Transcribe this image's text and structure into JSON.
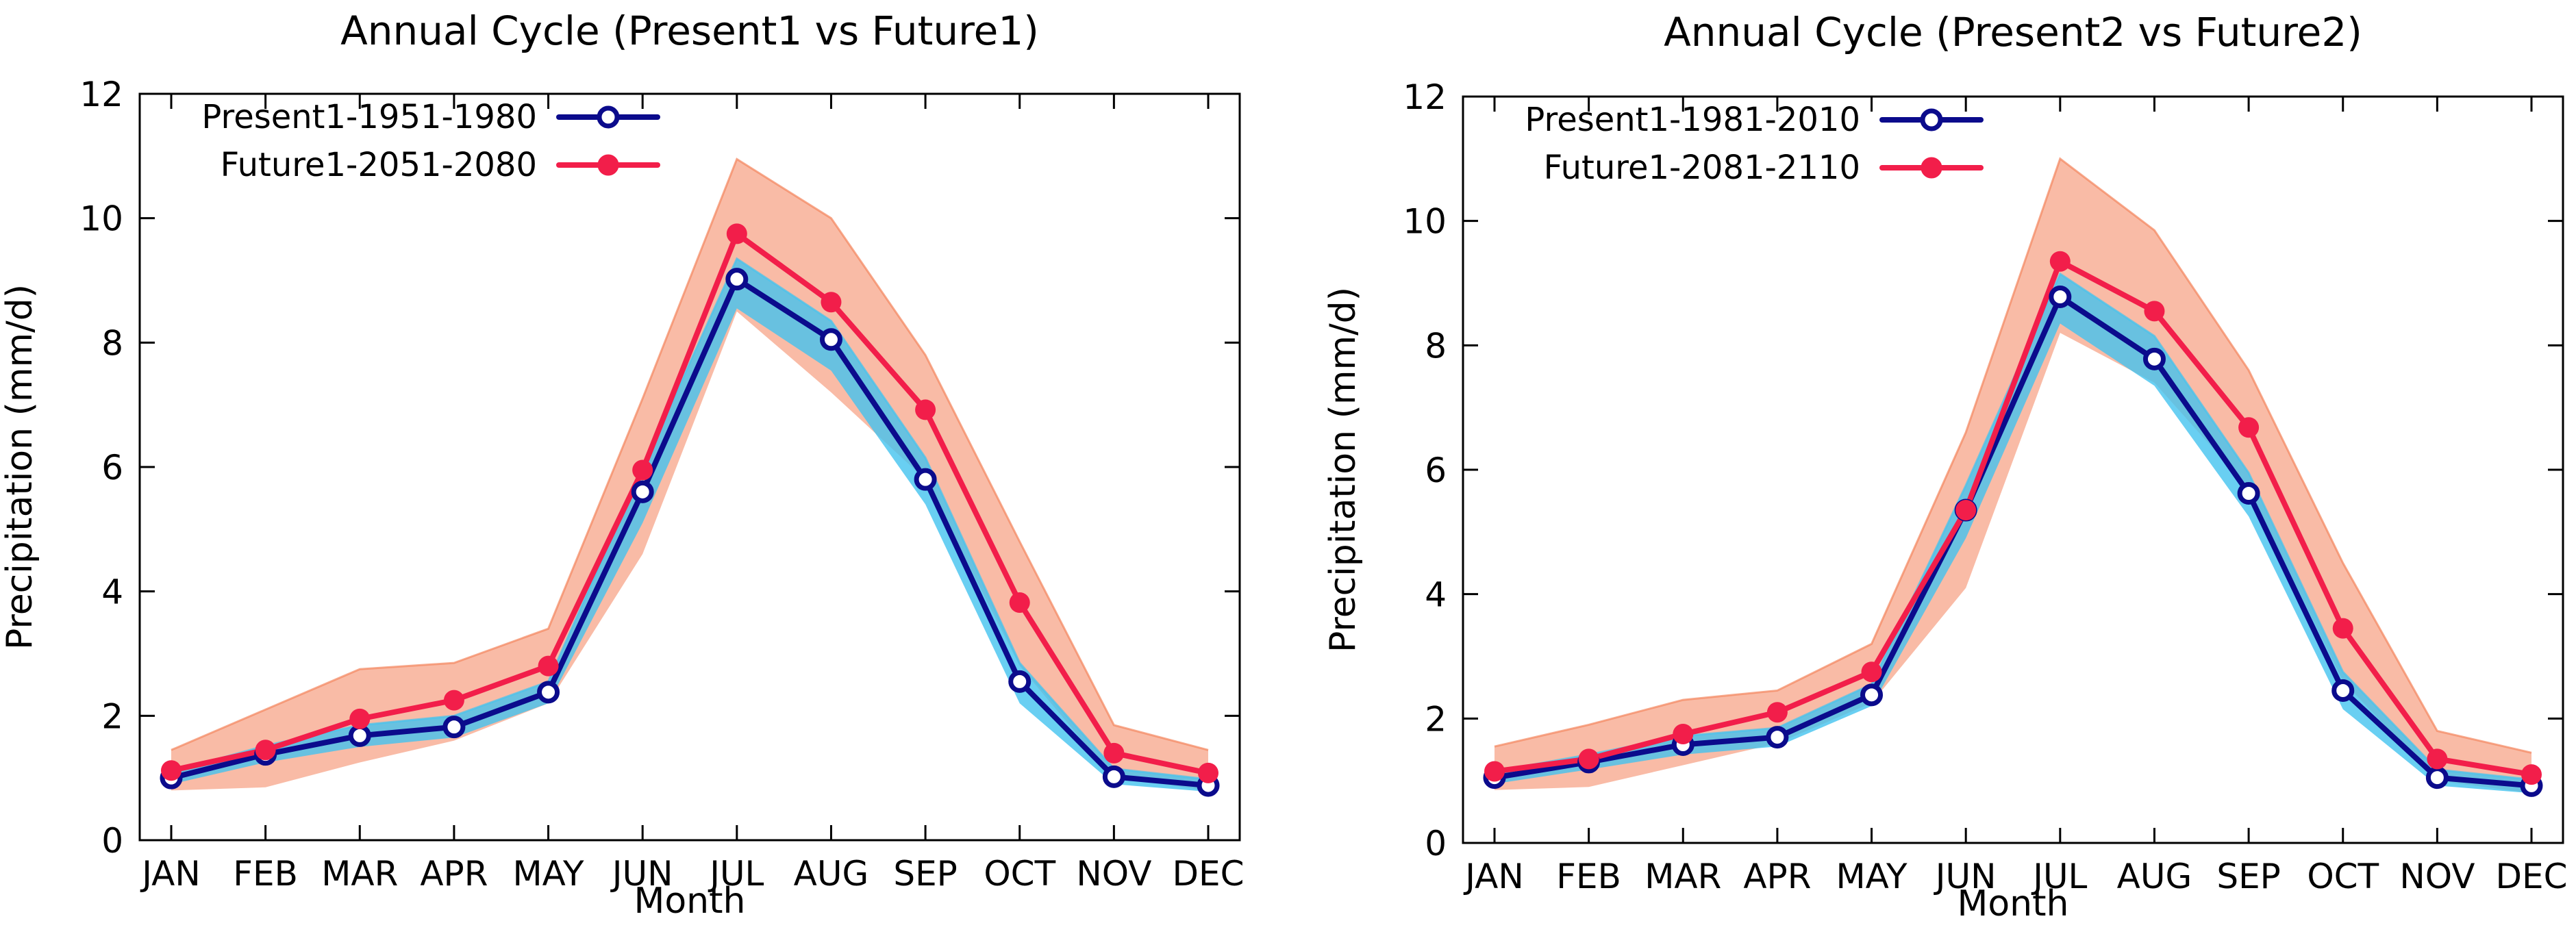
{
  "figure": {
    "colors": {
      "present_line": "#0b0b8c",
      "future_line": "#f21e4a",
      "present_band": "#43c3ef",
      "future_band": "#f4845c",
      "axes": "#000000"
    }
  },
  "chart_data": [
    {
      "type": "line",
      "title": "Annual Cycle (Present1 vs Future1)",
      "xlabel": "Month",
      "ylabel": "Precipitation (mm/d)",
      "categories": [
        "JAN",
        "FEB",
        "MAR",
        "APR",
        "MAY",
        "JUN",
        "JUL",
        "AUG",
        "SEP",
        "OCT",
        "NOV",
        "DEC"
      ],
      "ylim": [
        0,
        12
      ],
      "yticks": [
        "0",
        "2",
        "4",
        "6",
        "8",
        "10",
        "12"
      ],
      "grid": false,
      "legend_position": "top-left",
      "series": [
        {
          "name": "Present1-1951-1980",
          "marker": "open-circle",
          "values": [
            1.0,
            1.38,
            1.68,
            1.82,
            2.38,
            5.6,
            9.02,
            8.05,
            5.8,
            2.55,
            1.02,
            0.88
          ],
          "spread_low": [
            0.9,
            1.25,
            1.5,
            1.65,
            2.2,
            5.1,
            8.55,
            7.55,
            5.4,
            2.2,
            0.9,
            0.78
          ],
          "spread_high": [
            1.1,
            1.52,
            1.85,
            2.0,
            2.55,
            6.0,
            9.35,
            8.35,
            6.15,
            2.85,
            1.15,
            0.98
          ]
        },
        {
          "name": "Future1-2051-2080",
          "marker": "filled-circle",
          "values": [
            1.12,
            1.45,
            1.95,
            2.25,
            2.8,
            5.95,
            9.75,
            8.65,
            6.92,
            3.82,
            1.4,
            1.08
          ],
          "spread_low": [
            0.8,
            0.85,
            1.25,
            1.6,
            2.2,
            4.6,
            8.5,
            7.2,
            5.8,
            2.8,
            1.0,
            0.8
          ],
          "spread_high": [
            1.45,
            2.1,
            2.75,
            2.85,
            3.4,
            7.1,
            10.95,
            10.0,
            7.8,
            4.8,
            1.85,
            1.45
          ]
        }
      ]
    },
    {
      "type": "line",
      "title": "Annual Cycle (Present2 vs Future2)",
      "xlabel": "Month",
      "ylabel": "Precipitation (mm/d)",
      "categories": [
        "JAN",
        "FEB",
        "MAR",
        "APR",
        "MAY",
        "JUN",
        "JUL",
        "AUG",
        "SEP",
        "OCT",
        "NOV",
        "DEC"
      ],
      "ylim": [
        0,
        12
      ],
      "yticks": [
        "0",
        "2",
        "4",
        "6",
        "8",
        "10",
        "12"
      ],
      "grid": false,
      "legend_position": "top-left",
      "series": [
        {
          "name": "Present1-1981-2010",
          "marker": "open-circle",
          "values": [
            1.05,
            1.3,
            1.58,
            1.7,
            2.38,
            5.35,
            8.78,
            7.78,
            5.62,
            2.45,
            1.05,
            0.92
          ],
          "spread_low": [
            0.95,
            1.18,
            1.42,
            1.55,
            2.2,
            4.9,
            8.35,
            7.35,
            5.25,
            2.15,
            0.92,
            0.8
          ],
          "spread_high": [
            1.15,
            1.42,
            1.72,
            1.85,
            2.55,
            5.75,
            9.15,
            8.15,
            5.95,
            2.75,
            1.18,
            1.02
          ]
        },
        {
          "name": "Future1-2081-2110",
          "marker": "filled-circle",
          "values": [
            1.15,
            1.35,
            1.75,
            2.1,
            2.75,
            5.35,
            9.35,
            8.55,
            6.68,
            3.45,
            1.35,
            1.1
          ],
          "spread_low": [
            0.85,
            0.9,
            1.25,
            1.6,
            2.25,
            4.1,
            8.2,
            7.4,
            5.7,
            2.6,
            1.0,
            0.8
          ],
          "spread_high": [
            1.55,
            1.9,
            2.3,
            2.45,
            3.2,
            6.6,
            11.0,
            9.85,
            7.6,
            4.5,
            1.8,
            1.45
          ]
        }
      ]
    }
  ]
}
